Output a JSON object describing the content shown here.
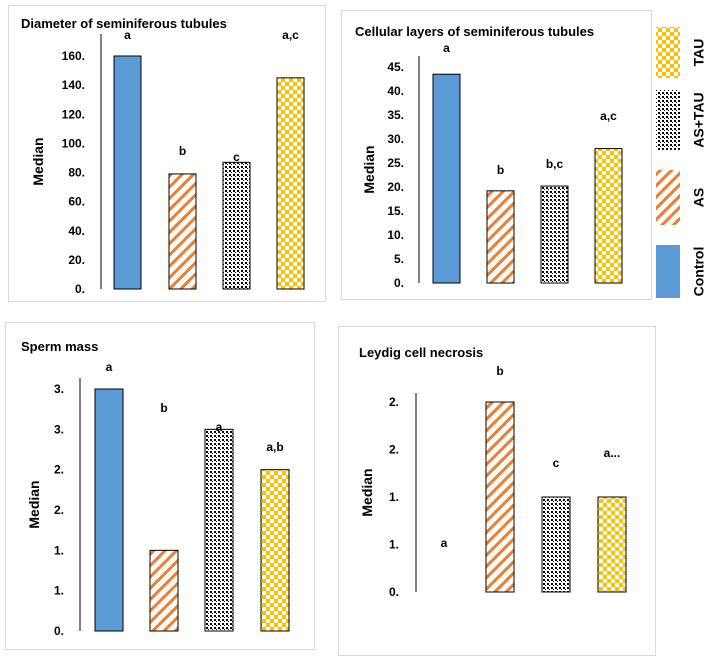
{
  "colors": {
    "control": "#5b9bd5",
    "as": "#ed7d31",
    "as_tau_dots": "#000000",
    "tau": "#ffc000"
  },
  "legend": {
    "items": [
      {
        "key": "control",
        "label": "Control"
      },
      {
        "key": "as",
        "label": "AS"
      },
      {
        "key": "as_tau",
        "label": "AS+TAU"
      },
      {
        "key": "tau",
        "label": "TAU"
      }
    ]
  },
  "chart_data": [
    {
      "type": "bar",
      "title": "Diameter of seminiferous tubules",
      "xlabel": "",
      "ylabel": "Median",
      "categories": [
        "Control",
        "AS",
        "AS+TAU",
        "TAU"
      ],
      "values": [
        160,
        79,
        87,
        145
      ],
      "significance_labels": [
        "a",
        "b",
        "c",
        "a,c"
      ],
      "yticks": [
        0,
        20,
        40,
        60,
        80,
        100,
        120,
        140,
        160
      ],
      "ytick_labels": [
        "0.",
        "20.",
        "40.",
        "60.",
        "80.",
        "100.",
        "120.",
        "140.",
        "160."
      ],
      "ylim": [
        0,
        160
      ],
      "grid": false,
      "legend": "right"
    },
    {
      "type": "bar",
      "title": "Cellular layers of seminiferous tubules",
      "xlabel": "",
      "ylabel": "Median",
      "categories": [
        "Control",
        "AS",
        "AS+TAU",
        "TAU"
      ],
      "values": [
        43.5,
        19.2,
        20.2,
        28
      ],
      "significance_labels": [
        "a",
        "b",
        "b,c",
        "a,c"
      ],
      "yticks": [
        0,
        5,
        10,
        15,
        20,
        25,
        30,
        35,
        40,
        45
      ],
      "ytick_labels": [
        "0.",
        "5.",
        "10.",
        "15.",
        "20.",
        "25.",
        "30.",
        "35.",
        "40.",
        "45."
      ],
      "ylim": [
        0,
        45
      ],
      "grid": false,
      "legend": "right"
    },
    {
      "type": "bar",
      "title": "Sperm mass",
      "xlabel": "",
      "ylabel": "Median",
      "categories": [
        "Control",
        "AS",
        "AS+TAU",
        "TAU"
      ],
      "values": [
        3.0,
        1.0,
        2.5,
        2.0
      ],
      "significance_labels": [
        "a",
        "b",
        "a",
        "a,b"
      ],
      "yticks": [
        0,
        0.5,
        1,
        1.5,
        2,
        2.5,
        3
      ],
      "ytick_labels": [
        "0.",
        "1.",
        "1.",
        "2.",
        "2.",
        "3.",
        "3."
      ],
      "ylim": [
        0,
        3.0
      ],
      "grid": false,
      "legend": "right"
    },
    {
      "type": "bar",
      "title": "Leydig cell necrosis",
      "xlabel": "",
      "ylabel": "Median",
      "categories": [
        "Control",
        "AS",
        "AS+TAU",
        "TAU"
      ],
      "values": [
        0,
        2.0,
        1.0,
        1.0
      ],
      "significance_labels": [
        "a",
        "b",
        "c",
        "a..."
      ],
      "yticks": [
        0,
        0.5,
        1,
        1.5,
        2
      ],
      "ytick_labels": [
        "0.",
        "1.",
        "1.",
        "2.",
        "2."
      ],
      "ylim": [
        0,
        2.0
      ],
      "grid": false,
      "legend": "right"
    }
  ]
}
